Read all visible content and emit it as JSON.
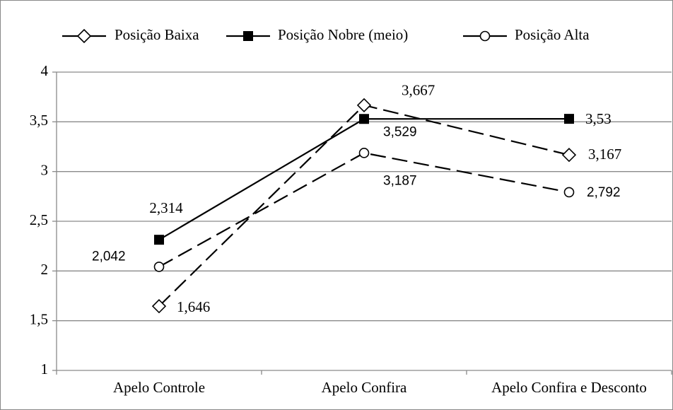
{
  "chart_data": {
    "type": "line",
    "categories": [
      "Apelo Controle",
      "Apelo Confira",
      "Apelo Confira e Desconto"
    ],
    "series": [
      {
        "name": "Posição Baixa",
        "color": "#000000",
        "marker": "diamond",
        "dash": true,
        "values": [
          1.646,
          3.667,
          3.167
        ],
        "value_labels": [
          "1,646",
          "3,667",
          "3,167"
        ]
      },
      {
        "name": "Posição Nobre (meio)",
        "color": "#000000",
        "marker": "square",
        "dash": false,
        "values": [
          2.314,
          3.529,
          3.53
        ],
        "value_labels": [
          "2,314",
          "3,529",
          "3,53"
        ]
      },
      {
        "name": "Posição Alta",
        "color": "#000000",
        "marker": "circle",
        "dash": true,
        "values": [
          2.042,
          3.187,
          2.792
        ],
        "value_labels": [
          "2,042",
          "3,187",
          "2,792"
        ]
      }
    ],
    "ylim": [
      1,
      4
    ],
    "yticks": [
      1,
      {
        "value": 1.5,
        "label": "1,5"
      },
      2,
      {
        "value": 2.5,
        "label": "2,5"
      },
      3,
      {
        "value": 3.5,
        "label": "3,5"
      },
      4
    ],
    "grid": true,
    "legend": "top"
  }
}
